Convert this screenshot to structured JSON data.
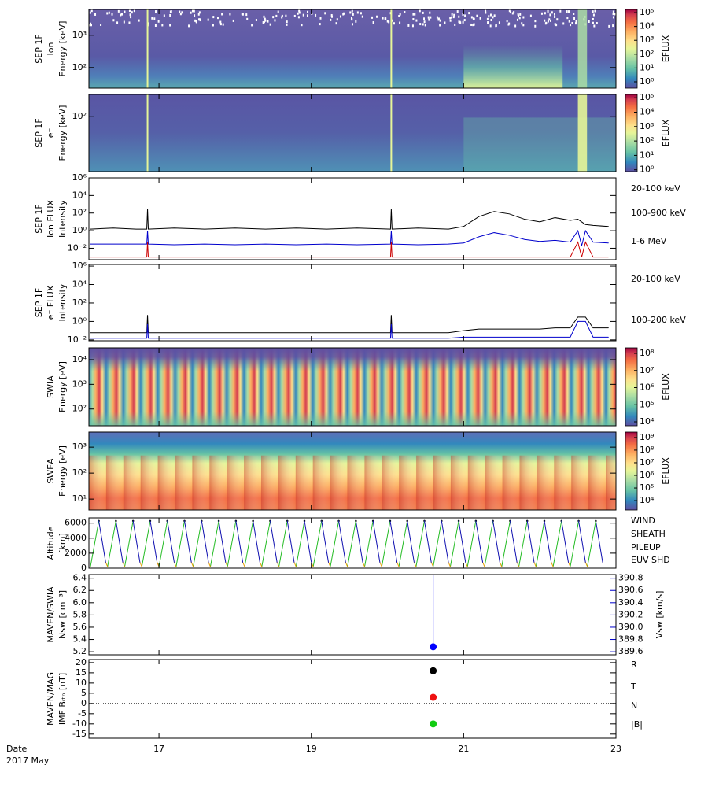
{
  "x_axis_title": "Date",
  "x_axis_subtitle": "2017 May",
  "chart_data": [
    {
      "type": "spectrogram",
      "ylabel": [
        "SEP 1F",
        "Ion",
        "Energy [keV]"
      ],
      "log": true,
      "ylim": [
        23,
        6300
      ],
      "yticks": [
        {
          "value": 100,
          "label": "10²"
        },
        {
          "value": 1000,
          "label": "10³"
        }
      ],
      "clim": [
        0.35,
        170000
      ],
      "colorbar_label": "EFLUX",
      "cticks": [
        {
          "value": 1,
          "label": "10⁰"
        },
        {
          "value": 10,
          "label": "10¹"
        },
        {
          "value": 100,
          "label": "10²"
        },
        {
          "value": 1000,
          "label": "10³"
        },
        {
          "value": 10000,
          "label": "10⁴"
        },
        {
          "value": 100000,
          "label": "10⁵"
        }
      ]
    },
    {
      "type": "spectrogram",
      "ylabel": [
        "SEP 1F",
        "e⁻",
        "Energy [keV]"
      ],
      "log": true,
      "ylim": [
        3,
        400
      ],
      "yticks": [
        {
          "value": 100,
          "label": "10²"
        }
      ],
      "clim": [
        0.75,
        170000
      ],
      "colorbar_label": "EFLUX",
      "cticks": [
        {
          "value": 1,
          "label": "10⁰"
        },
        {
          "value": 10,
          "label": "10¹"
        },
        {
          "value": 100,
          "label": "10²"
        },
        {
          "value": 1000,
          "label": "10³"
        },
        {
          "value": 10000,
          "label": "10⁴"
        },
        {
          "value": 100000,
          "label": "10⁵"
        }
      ]
    },
    {
      "type": "line",
      "ylabel": [
        "SEP 1F",
        "Ion FLUX",
        "Intensity"
      ],
      "log": true,
      "ylim": [
        0.0005,
        1000000
      ],
      "xlim": [
        16.08,
        23
      ],
      "yticks": [
        {
          "value": 0.01,
          "label": "10⁻²"
        },
        {
          "value": 1,
          "label": "10⁰"
        },
        {
          "value": 100,
          "label": "10²"
        },
        {
          "value": 10000,
          "label": "10⁴"
        },
        {
          "value": 1000000,
          "label": "10⁶"
        }
      ],
      "x": [
        16.1,
        16.4,
        16.7,
        16.84,
        16.85,
        16.86,
        17.2,
        17.6,
        18.0,
        18.4,
        18.8,
        19.2,
        19.6,
        20.04,
        20.05,
        20.06,
        20.4,
        20.8,
        21.0,
        21.2,
        21.4,
        21.6,
        21.8,
        22.0,
        22.2,
        22.4,
        22.5,
        22.55,
        22.6,
        22.7,
        22.9
      ],
      "series": [
        {
          "name": "20-100 keV",
          "color": "#000000",
          "values": [
            1.5,
            2,
            1.5,
            1.5,
            300,
            1.5,
            2,
            1.5,
            2,
            1.5,
            2,
            1.5,
            2,
            1.5,
            300,
            1.5,
            2,
            1.5,
            3,
            40,
            150,
            80,
            20,
            10,
            30,
            15,
            20,
            10,
            5,
            4,
            3
          ]
        },
        {
          "name": "100-900 keV",
          "color": "#0000cc",
          "values": [
            0.03,
            0.03,
            0.03,
            0.03,
            1,
            0.03,
            0.025,
            0.03,
            0.025,
            0.03,
            0.025,
            0.03,
            0.025,
            0.03,
            1,
            0.03,
            0.025,
            0.03,
            0.04,
            0.2,
            0.6,
            0.3,
            0.1,
            0.06,
            0.08,
            0.05,
            1,
            0.02,
            1,
            0.05,
            0.04
          ]
        },
        {
          "name": "1-6 MeV",
          "color": "#cc0000",
          "values": [
            0.001,
            0.001,
            0.001,
            0.001,
            0.05,
            0.001,
            0.001,
            0.001,
            0.001,
            0.001,
            0.001,
            0.001,
            0.001,
            0.001,
            0.05,
            0.001,
            0.001,
            0.001,
            0.001,
            0.001,
            0.001,
            0.001,
            0.001,
            0.001,
            0.001,
            0.001,
            0.05,
            0.001,
            0.05,
            0.001,
            0.001
          ]
        }
      ]
    },
    {
      "type": "line",
      "ylabel": [
        "SEP 1F",
        "e⁻ FLUX",
        "Intensity"
      ],
      "log": true,
      "ylim": [
        0.008,
        1500000
      ],
      "xlim": [
        16.08,
        23
      ],
      "yticks": [
        {
          "value": 0.01,
          "label": "10⁻²"
        },
        {
          "value": 1,
          "label": "10⁰"
        },
        {
          "value": 100,
          "label": "10²"
        },
        {
          "value": 10000,
          "label": "10⁴"
        },
        {
          "value": 1000000,
          "label": "10⁶"
        }
      ],
      "x": [
        16.1,
        16.4,
        16.7,
        16.84,
        16.85,
        16.86,
        17.2,
        17.6,
        18.0,
        18.4,
        18.8,
        19.2,
        19.6,
        20.04,
        20.05,
        20.06,
        20.4,
        20.8,
        21.0,
        21.2,
        21.4,
        21.6,
        21.8,
        22.0,
        22.2,
        22.4,
        22.5,
        22.55,
        22.6,
        22.7,
        22.9
      ],
      "series": [
        {
          "name": "20-100 keV",
          "color": "#000000",
          "values": [
            0.06,
            0.06,
            0.06,
            0.06,
            5,
            0.06,
            0.06,
            0.06,
            0.06,
            0.06,
            0.06,
            0.06,
            0.06,
            0.06,
            5,
            0.06,
            0.06,
            0.06,
            0.1,
            0.15,
            0.15,
            0.15,
            0.15,
            0.15,
            0.2,
            0.2,
            3,
            3,
            3,
            0.2,
            0.2
          ]
        },
        {
          "name": "100-200 keV",
          "color": "#0000cc",
          "values": [
            0.015,
            0.015,
            0.015,
            0.015,
            0.5,
            0.015,
            0.015,
            0.015,
            0.015,
            0.015,
            0.015,
            0.015,
            0.015,
            0.015,
            0.5,
            0.015,
            0.015,
            0.015,
            0.02,
            0.02,
            0.02,
            0.02,
            0.02,
            0.02,
            0.02,
            0.02,
            1,
            1,
            1,
            0.02,
            0.02
          ]
        }
      ]
    },
    {
      "type": "spectrogram",
      "ylabel": [
        "SWIA",
        "Energy [eV]"
      ],
      "log": true,
      "ylim": [
        21,
        30000
      ],
      "yticks": [
        {
          "value": 100,
          "label": "10²"
        },
        {
          "value": 1000,
          "label": "10³"
        },
        {
          "value": 10000,
          "label": "10⁴"
        }
      ],
      "clim": [
        5900,
        210000000
      ],
      "colorbar_label": "EFLUX",
      "cticks": [
        {
          "value": 10000,
          "label": "10⁴"
        },
        {
          "value": 100000,
          "label": "10⁵"
        },
        {
          "value": 1000000,
          "label": "10⁶"
        },
        {
          "value": 10000000,
          "label": "10⁷"
        },
        {
          "value": 100000000,
          "label": "10⁸"
        }
      ]
    },
    {
      "type": "spectrogram",
      "ylabel": [
        "SWEA",
        "Energy [eV]"
      ],
      "log": true,
      "ylim": [
        3.8,
        3800
      ],
      "yticks": [
        {
          "value": 10,
          "label": "10¹"
        },
        {
          "value": 100,
          "label": "10²"
        },
        {
          "value": 1000,
          "label": "10³"
        }
      ],
      "clim": [
        1800,
        2700000000
      ],
      "colorbar_label": "EFLUX",
      "cticks": [
        {
          "value": 10000,
          "label": "10⁴"
        },
        {
          "value": 100000,
          "label": "10⁵"
        },
        {
          "value": 1000000,
          "label": "10⁶"
        },
        {
          "value": 10000000,
          "label": "10⁷"
        },
        {
          "value": 100000000,
          "label": "10⁸"
        },
        {
          "value": 1000000000,
          "label": "10⁹"
        }
      ]
    },
    {
      "type": "line",
      "ylabel": [
        "Altitude",
        "[km]"
      ],
      "log": false,
      "ylim": [
        0,
        6700
      ],
      "xlim": [
        16.08,
        23
      ],
      "yticks": [
        0,
        2000,
        4000,
        6000
      ],
      "x": [
        16.1,
        16.21,
        16.3,
        16.325,
        16.435,
        16.525,
        16.55,
        16.66,
        16.75,
        16.775,
        16.885,
        16.975,
        17.0,
        17.11,
        17.2,
        17.225,
        17.335,
        17.425,
        17.45,
        17.56,
        17.65,
        17.675,
        17.785,
        17.875,
        17.9,
        18.01,
        18.1,
        18.125,
        18.235,
        18.325,
        18.35,
        18.46,
        18.55,
        18.575,
        18.685,
        18.775,
        18.8,
        18.91,
        19.0,
        19.025,
        19.135,
        19.225,
        19.25,
        19.36,
        19.45,
        19.475,
        19.585,
        19.675,
        19.7,
        19.81,
        19.9,
        19.925,
        20.035,
        20.125,
        20.15,
        20.26,
        20.35,
        20.375,
        20.485,
        20.575,
        20.6,
        20.71,
        20.8,
        20.825,
        20.935,
        21.025,
        21.05,
        21.16,
        21.25,
        21.275,
        21.385,
        21.475,
        21.5,
        21.61,
        21.7,
        21.725,
        21.835,
        21.925,
        21.95,
        22.06,
        22.15,
        22.175,
        22.285,
        22.375,
        22.4,
        22.51,
        22.6,
        22.625,
        22.735,
        22.825
      ],
      "series": [
        {
          "name": "WIND",
          "color": "#000000",
          "values": [
            null,
            6300,
            null,
            null,
            6300,
            null,
            null,
            6300,
            null,
            null,
            6300,
            null,
            null,
            6300,
            null,
            null,
            6300,
            null,
            null,
            6300,
            null,
            null,
            6300,
            null,
            null,
            6300,
            null,
            null,
            6300,
            null,
            null,
            6300,
            null,
            null,
            6300,
            null,
            null,
            6300,
            null,
            null,
            6300,
            null,
            null,
            6300,
            null,
            null,
            6300,
            null,
            null,
            6300,
            null,
            null,
            6300,
            null,
            null,
            6300,
            null,
            null,
            6300,
            null,
            null,
            6300,
            null,
            null,
            6300,
            null,
            null,
            6300,
            null,
            null,
            6300,
            null,
            null,
            6300,
            null,
            null,
            6300,
            null,
            null,
            6300,
            null,
            null,
            6300,
            null,
            null,
            6300,
            null,
            null,
            6300,
            null
          ]
        },
        {
          "name": "SHEATH",
          "color": "#22bb22",
          "values": [
            200,
            6300,
            null,
            200,
            6300,
            null,
            200,
            6300,
            null,
            200,
            6300,
            null,
            200,
            6300,
            null,
            200,
            6300,
            null,
            200,
            6300,
            null,
            200,
            6300,
            null,
            200,
            6300,
            null,
            200,
            6300,
            null,
            200,
            6300,
            null,
            200,
            6300,
            null,
            200,
            6300,
            null,
            200,
            6300,
            null,
            200,
            6300,
            null,
            200,
            6300,
            null,
            200,
            6300,
            null,
            200,
            6300,
            null,
            200,
            6300,
            null,
            200,
            6300,
            null,
            200,
            6300,
            null,
            200,
            6300,
            null,
            200,
            6300,
            null,
            200,
            6300,
            null,
            200,
            6300,
            null,
            200,
            6300,
            null,
            200,
            6300,
            null,
            200,
            6300,
            null,
            200,
            6300,
            null,
            200,
            6300,
            null
          ]
        },
        {
          "name": "PILEUP",
          "color": "#e8a000",
          "values": [
            200,
            null,
            800,
            200,
            null,
            800,
            200,
            null,
            800,
            200,
            null,
            800,
            200,
            null,
            800,
            200,
            null,
            800,
            200,
            null,
            800,
            200,
            null,
            800,
            200,
            null,
            800,
            200,
            null,
            800,
            200,
            null,
            800,
            200,
            null,
            800,
            200,
            null,
            800,
            200,
            null,
            800,
            200,
            null,
            800,
            200,
            null,
            800,
            200,
            null,
            800,
            200,
            null,
            800,
            200,
            null,
            800,
            200,
            null,
            800,
            200,
            null,
            800,
            200,
            null,
            800,
            200,
            null,
            800,
            200,
            null,
            800,
            200,
            null,
            800,
            200,
            null,
            800,
            200,
            null,
            800,
            200,
            null,
            800,
            200,
            null,
            800,
            200,
            null,
            800
          ]
        },
        {
          "name": "EUV SHD",
          "color": "#1010b0",
          "values": [
            null,
            6300,
            800,
            null,
            6300,
            800,
            null,
            6300,
            800,
            null,
            6300,
            800,
            null,
            6300,
            800,
            null,
            6300,
            800,
            null,
            6300,
            800,
            null,
            6300,
            800,
            null,
            6300,
            800,
            null,
            6300,
            800,
            null,
            6300,
            800,
            null,
            6300,
            800,
            null,
            6300,
            800,
            null,
            6300,
            800,
            null,
            6300,
            800,
            null,
            6300,
            800,
            null,
            6300,
            800,
            null,
            6300,
            800,
            null,
            6300,
            800,
            null,
            6300,
            800,
            null,
            6300,
            800,
            null,
            6300,
            800,
            null,
            6300,
            800,
            null,
            6300,
            800,
            null,
            6300,
            800,
            null,
            6300,
            800,
            null,
            6300,
            800,
            null,
            6300,
            800,
            null,
            6300,
            800,
            null,
            6300,
            800
          ]
        }
      ]
    },
    {
      "type": "scatter",
      "ylabel": [
        "MAVEN/SWIA",
        "Nsw [cm⁻³]"
      ],
      "y2label": "Vsw [km/s]",
      "log": false,
      "xlim": [
        16.08,
        23
      ],
      "ylim": [
        5.15,
        6.46
      ],
      "yticks": [
        5.2,
        5.4,
        5.6,
        5.8,
        {
          "value": 6,
          "label": "6.0"
        },
        6.2,
        6.4
      ],
      "y2lim": [
        389.55,
        390.86
      ],
      "y2ticks": [
        389.6,
        389.8,
        {
          "value": 390,
          "label": "390.0"
        },
        390.2,
        390.4,
        390.6,
        390.8
      ],
      "x": [
        20.6
      ],
      "series": [
        {
          "color": "#0000ff",
          "values": [
            5.28
          ]
        }
      ]
    },
    {
      "type": "scatter",
      "ylabel": [
        "MAVEN/MAG",
        "IMF Bᵣₜₙ [nT]"
      ],
      "log": false,
      "xlim": [
        16.08,
        23
      ],
      "ylim": [
        -17,
        21.5
      ],
      "yticks": [
        -15,
        -10,
        -5,
        0,
        5,
        10,
        15,
        20
      ],
      "zero_line": true,
      "xticks": [
        17,
        19,
        21,
        23
      ],
      "x": [
        20.6
      ],
      "series": [
        {
          "name": "R",
          "color": "#3050b0",
          "values": [
            null
          ]
        },
        {
          "name": "T",
          "color": "#11cc11",
          "values": [
            -10
          ]
        },
        {
          "name": "N",
          "color": "#ee1111",
          "values": [
            3
          ]
        },
        {
          "name": "|B|",
          "color": "#000000",
          "values": [
            16
          ]
        }
      ]
    }
  ]
}
